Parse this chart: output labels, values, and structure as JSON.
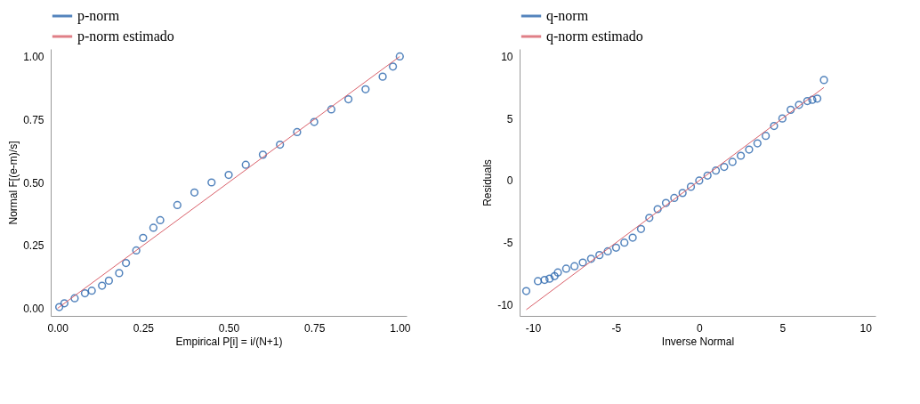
{
  "chart_data": [
    {
      "type": "scatter",
      "xlabel": "Empirical P[i] = i/(N+1)",
      "ylabel": "Normal F[(e-m)/s]",
      "xlim": [
        -0.02,
        1.02
      ],
      "ylim": [
        -0.03,
        1.03
      ],
      "xticks": [
        {
          "value": 0,
          "label": "0.00"
        },
        {
          "value": 0.25,
          "label": "0.25"
        },
        {
          "value": 0.5,
          "label": "0.50"
        },
        {
          "value": 0.75,
          "label": "0.75"
        },
        {
          "value": 1,
          "label": "1.00"
        }
      ],
      "yticks": [
        {
          "value": 0,
          "label": "0.00"
        },
        {
          "value": 0.25,
          "label": "0.25"
        },
        {
          "value": 0.5,
          "label": "0.50"
        },
        {
          "value": 0.75,
          "label": "0.75"
        },
        {
          "value": 1,
          "label": "1.00"
        }
      ],
      "grid": false,
      "legend": "top",
      "series": [
        {
          "name": "p-norm",
          "marker": "circle",
          "color": "#2a66ad",
          "x": [
            0.005,
            0.02,
            0.05,
            0.08,
            0.1,
            0.13,
            0.15,
            0.18,
            0.2,
            0.23,
            0.25,
            0.28,
            0.3,
            0.35,
            0.4,
            0.45,
            0.5,
            0.55,
            0.6,
            0.65,
            0.7,
            0.75,
            0.8,
            0.85,
            0.9,
            0.95,
            0.98,
            1.0
          ],
          "values": [
            0.005,
            0.02,
            0.04,
            0.06,
            0.07,
            0.09,
            0.11,
            0.14,
            0.18,
            0.23,
            0.28,
            0.32,
            0.35,
            0.41,
            0.46,
            0.5,
            0.53,
            0.57,
            0.61,
            0.65,
            0.7,
            0.74,
            0.79,
            0.83,
            0.87,
            0.92,
            0.96,
            1.0
          ]
        },
        {
          "name": "p-norm estimado",
          "type": "line",
          "marker": "none",
          "line_style": "solid",
          "color": "#d9606a",
          "x": [
            0.0,
            1.0
          ],
          "values": [
            0.0,
            1.0
          ]
        }
      ]
    },
    {
      "type": "scatter",
      "xlabel": "Inverse Normal",
      "ylabel": "Residuals",
      "xlim": [
        -10.8,
        10.6
      ],
      "ylim": [
        -10.9,
        10.6
      ],
      "xticks": [
        -10,
        -5,
        0,
        5,
        10
      ],
      "yticks": [
        -10,
        -5,
        0,
        5,
        10
      ],
      "grid": false,
      "legend": "top",
      "series": [
        {
          "name": "q-norm",
          "marker": "circle",
          "color": "#2a66ad",
          "x": [
            -10.4,
            -9.7,
            -9.3,
            -9.0,
            -8.7,
            -8.5,
            -8.0,
            -7.5,
            -7.0,
            -6.5,
            -6.0,
            -5.5,
            -5.0,
            -4.5,
            -4.0,
            -3.5,
            -3.0,
            -2.5,
            -2.0,
            -1.5,
            -1.0,
            -0.5,
            0.0,
            0.5,
            1.0,
            1.5,
            2.0,
            2.5,
            3.0,
            3.5,
            4.0,
            4.5,
            5.0,
            5.5,
            6.0,
            6.5,
            6.8,
            7.1,
            7.5
          ],
          "values": [
            -8.9,
            -8.1,
            -8.0,
            -7.9,
            -7.7,
            -7.4,
            -7.1,
            -6.9,
            -6.6,
            -6.3,
            -6.0,
            -5.7,
            -5.4,
            -5.0,
            -4.6,
            -3.9,
            -3.0,
            -2.3,
            -1.8,
            -1.4,
            -1.0,
            -0.5,
            0.0,
            0.4,
            0.8,
            1.1,
            1.5,
            2.0,
            2.5,
            3.0,
            3.6,
            4.4,
            5.0,
            5.7,
            6.1,
            6.4,
            6.5,
            6.6,
            8.1
          ]
        },
        {
          "name": "q-norm estimado",
          "type": "line",
          "marker": "none",
          "line_style": "solid",
          "color": "#d9606a",
          "x": [
            -10.4,
            7.5
          ],
          "values": [
            -10.4,
            7.5
          ]
        }
      ]
    }
  ]
}
